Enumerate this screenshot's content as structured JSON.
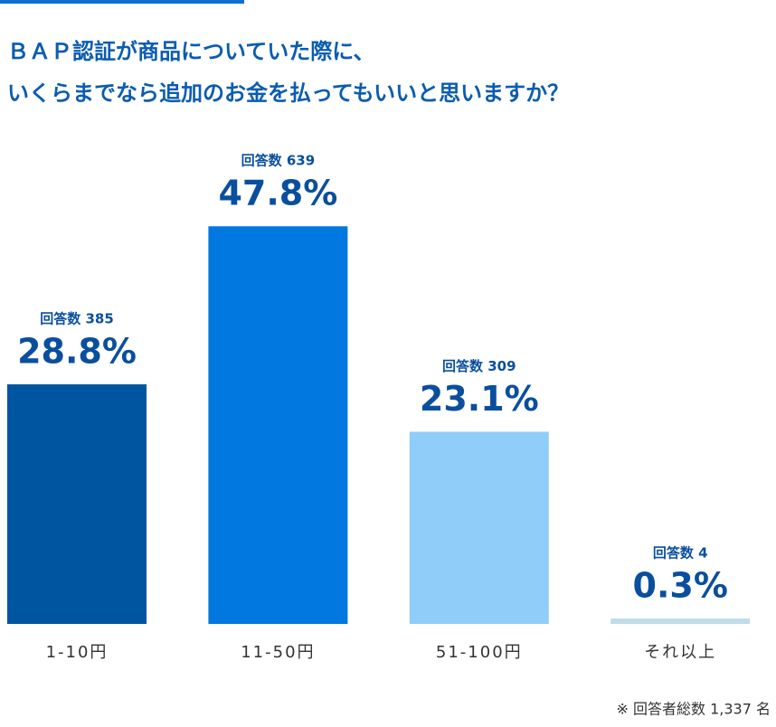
{
  "chart_data": {
    "type": "bar",
    "title_lines": [
      "ＢＡＰ認証が商品についていた際に、",
      "いくらまでなら追加のお金を払ってもいいと思いますか？"
    ],
    "categories": [
      "1-10円",
      "11-50円",
      "51-100円",
      "それ以上"
    ],
    "values": [
      28.8,
      47.8,
      23.1,
      0.3
    ],
    "value_labels": [
      "28.8%",
      "47.8%",
      "23.1%",
      "0.3%"
    ],
    "count_labels": [
      "回答数 385",
      "回答数 639",
      "回答数 309",
      "回答数 4"
    ],
    "colors": [
      "#0055a0",
      "#0078e0",
      "#90cdf8",
      "#c0dce8"
    ],
    "note": "※ 回答者総数 1,337 名"
  }
}
